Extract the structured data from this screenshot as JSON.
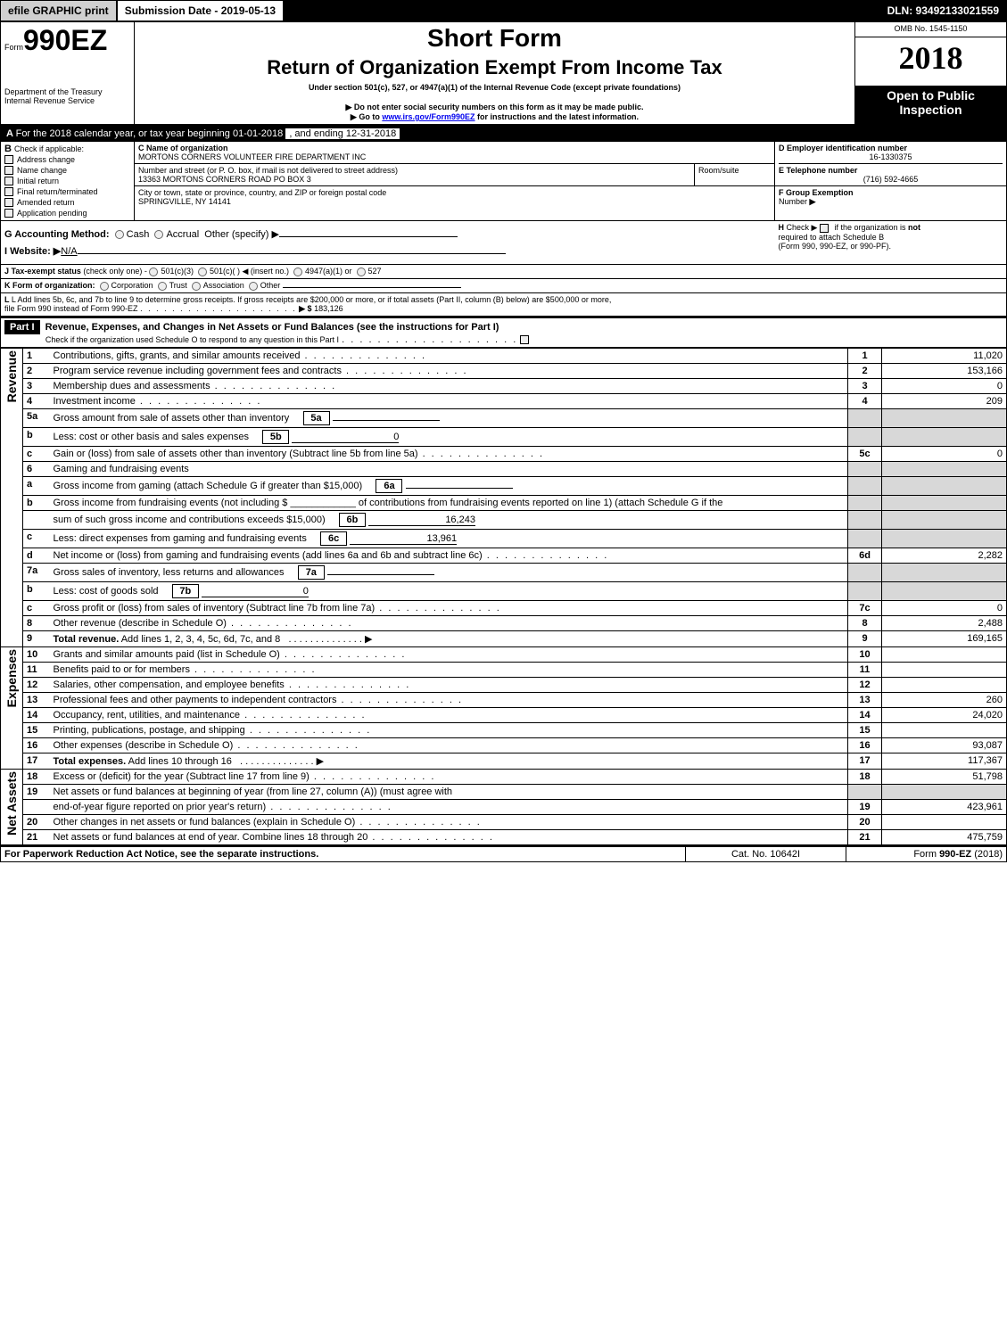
{
  "topbar": {
    "efile_btn": "efile GRAPHIC print",
    "submission_label": "Submission Date - 2019-05-13",
    "dln": "DLN: 93492133021559"
  },
  "header": {
    "form_prefix": "Form",
    "form_number": "990EZ",
    "short_form": "Short Form",
    "title": "Return of Organization Exempt From Income Tax",
    "under_section": "Under section 501(c), 527, or 4947(a)(1) of the Internal Revenue Code (except private foundations)",
    "dept": "Department of the Treasury",
    "irs": "Internal Revenue Service",
    "no_ssn": "▶ Do not enter social security numbers on this form as it may be made public.",
    "goto_prefix": "▶ Go to ",
    "goto_link": "www.irs.gov/Form990EZ",
    "goto_suffix": " for instructions and the latest information.",
    "omb": "OMB No. 1545-1150",
    "year": "2018",
    "open_public": "Open to Public",
    "inspection": "Inspection"
  },
  "section_a": {
    "a_line": "For the 2018 calendar year, or tax year beginning 01-01-2018",
    "a_line_end": ", and ending 12-31-2018",
    "b_label": "Check if applicable:",
    "b_items": {
      "address": "Address change",
      "name": "Name change",
      "initial": "Initial return",
      "final": "Final return/terminated",
      "amended": "Amended return",
      "pending": "Application pending"
    },
    "c_label": "C Name of organization",
    "c_name": "MORTONS CORNERS VOLUNTEER FIRE DEPARTMENT INC",
    "addr_label": "Number and street (or P. O. box, if mail is not delivered to street address)",
    "addr": "13363 MORTONS CORNERS ROAD PO BOX 3",
    "room_label": "Room/suite",
    "city_label": "City or town, state or province, country, and ZIP or foreign postal code",
    "city": "SPRINGVILLE, NY  14141",
    "d_label": "D Employer identification number",
    "d_ein": "16-1330375",
    "e_label": "E Telephone number",
    "e_phone": "(716) 592-4665",
    "f_label": "F Group Exemption",
    "f_label2": "Number",
    "f_arrow": "▶",
    "g_label": "G Accounting Method:",
    "g_cash": "Cash",
    "g_accrual": "Accrual",
    "g_other": "Other (specify) ▶",
    "h_label": "Check ▶",
    "h_text1": "if the organization is ",
    "h_not": "not",
    "h_text2": "required to attach Schedule B",
    "h_text3": "(Form 990, 990-EZ, or 990-PF).",
    "i_label": "I Website: ▶",
    "i_site": "N/A",
    "j_label": "J Tax-exempt status",
    "j_note": "(check only one) -",
    "j_501c3": "501(c)(3)",
    "j_501c": "501(c)(  )",
    "j_insert": "◀ (insert no.)",
    "j_4947": "4947(a)(1) or",
    "j_527": "527",
    "k_label": "K Form of organization:",
    "k_corp": "Corporation",
    "k_trust": "Trust",
    "k_assoc": "Association",
    "k_other": "Other",
    "l_text1": "L Add lines 5b, 6c, and 7b to line 9 to determine gross receipts. If gross receipts are $200,000 or more, or if total assets (Part II, column (B) below) are $500,000 or more,",
    "l_text2": "file Form 990 instead of Form 990-EZ",
    "l_arrow": "▶ $",
    "l_amount": "183,126"
  },
  "part1": {
    "header_label": "Part I",
    "header_title": "Revenue, Expenses, and Changes in Net Assets or Fund Balances (see the instructions for Part I)",
    "check_text": "Check if the organization used Schedule O to respond to any question in this Part I",
    "revenue_label": "Revenue",
    "expenses_label": "Expenses",
    "netassets_label": "Net Assets",
    "rows": [
      {
        "n": "1",
        "desc": "Contributions, gifts, grants, and similar amounts received",
        "box": "1",
        "amt": "11,020"
      },
      {
        "n": "2",
        "desc": "Program service revenue including government fees and contracts",
        "box": "2",
        "amt": "153,166"
      },
      {
        "n": "3",
        "desc": "Membership dues and assessments",
        "box": "3",
        "amt": "0"
      },
      {
        "n": "4",
        "desc": "Investment income",
        "box": "4",
        "amt": "209"
      },
      {
        "n": "5a",
        "desc": "Gross amount from sale of assets other than inventory",
        "sub": "5a",
        "subamt": ""
      },
      {
        "n": "b",
        "desc": "Less: cost or other basis and sales expenses",
        "sub": "5b",
        "subamt": "0"
      },
      {
        "n": "c",
        "desc": "Gain or (loss) from sale of assets other than inventory (Subtract line 5b from line 5a)",
        "box": "5c",
        "amt": "0"
      },
      {
        "n": "6",
        "desc": "Gaming and fundraising events"
      },
      {
        "n": "a",
        "desc": "Gross income from gaming (attach Schedule G if greater than $15,000)",
        "sub": "6a",
        "subamt": ""
      },
      {
        "n": "b",
        "desc": "Gross income from fundraising events (not including $ ____________ of contributions from fundraising events reported on line 1) (attach Schedule G if the"
      },
      {
        "n": "",
        "desc": "sum of such gross income and contributions exceeds $15,000)",
        "sub": "6b",
        "subamt": "16,243"
      },
      {
        "n": "c",
        "desc": "Less: direct expenses from gaming and fundraising events",
        "sub": "6c",
        "subamt": "13,961"
      },
      {
        "n": "d",
        "desc": "Net income or (loss) from gaming and fundraising events (add lines 6a and 6b and subtract line 6c)",
        "box": "6d",
        "amt": "2,282"
      },
      {
        "n": "7a",
        "desc": "Gross sales of inventory, less returns and allowances",
        "sub": "7a",
        "subamt": ""
      },
      {
        "n": "b",
        "desc": "Less: cost of goods sold",
        "sub": "7b",
        "subamt": "0"
      },
      {
        "n": "c",
        "desc": "Gross profit or (loss) from sales of inventory (Subtract line 7b from line 7a)",
        "box": "7c",
        "amt": "0"
      },
      {
        "n": "8",
        "desc": "Other revenue (describe in Schedule O)",
        "box": "8",
        "amt": "2,488"
      },
      {
        "n": "9",
        "desc": "Total revenue. Add lines 1, 2, 3, 4, 5c, 6d, 7c, and 8",
        "box": "9",
        "amt": "169,165",
        "bold": true,
        "arrow": true
      },
      {
        "n": "10",
        "desc": "Grants and similar amounts paid (list in Schedule O)",
        "box": "10",
        "amt": ""
      },
      {
        "n": "11",
        "desc": "Benefits paid to or for members",
        "box": "11",
        "amt": ""
      },
      {
        "n": "12",
        "desc": "Salaries, other compensation, and employee benefits",
        "box": "12",
        "amt": ""
      },
      {
        "n": "13",
        "desc": "Professional fees and other payments to independent contractors",
        "box": "13",
        "amt": "260"
      },
      {
        "n": "14",
        "desc": "Occupancy, rent, utilities, and maintenance",
        "box": "14",
        "amt": "24,020"
      },
      {
        "n": "15",
        "desc": "Printing, publications, postage, and shipping",
        "box": "15",
        "amt": ""
      },
      {
        "n": "16",
        "desc": "Other expenses (describe in Schedule O)",
        "box": "16",
        "amt": "93,087"
      },
      {
        "n": "17",
        "desc": "Total expenses. Add lines 10 through 16",
        "box": "17",
        "amt": "117,367",
        "bold": true,
        "arrow": true
      },
      {
        "n": "18",
        "desc": "Excess or (deficit) for the year (Subtract line 17 from line 9)",
        "box": "18",
        "amt": "51,798"
      },
      {
        "n": "19",
        "desc": "Net assets or fund balances at beginning of year (from line 27, column (A)) (must agree with"
      },
      {
        "n": "",
        "desc": "end-of-year figure reported on prior year's return)",
        "box": "19",
        "amt": "423,961"
      },
      {
        "n": "20",
        "desc": "Other changes in net assets or fund balances (explain in Schedule O)",
        "box": "20",
        "amt": ""
      },
      {
        "n": "21",
        "desc": "Net assets or fund balances at end of year. Combine lines 18 through 20",
        "box": "21",
        "amt": "475,759"
      }
    ]
  },
  "footer": {
    "paperwork": "For Paperwork Reduction Act Notice, see the separate instructions.",
    "catno": "Cat. No. 10642I",
    "formref": "Form 990-EZ (2018)"
  },
  "colors": {
    "black": "#000000",
    "white": "#ffffff",
    "grey": "#d8d8d8",
    "btn_grey": "#d0d0d0",
    "link": "#0000ee"
  }
}
